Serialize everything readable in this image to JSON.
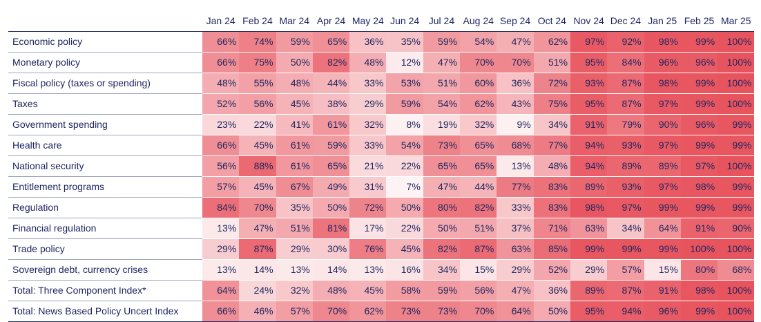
{
  "chart_data": {
    "type": "heatmap",
    "columns": [
      "Jan 24",
      "Feb 24",
      "Mar 24",
      "Apr 24",
      "May 24",
      "Jun 24",
      "Jul 24",
      "Aug 24",
      "Sep 24",
      "Oct 24",
      "Nov 24",
      "Dec 24",
      "Jan 25",
      "Feb 25",
      "Mar 25"
    ],
    "unit": "%",
    "rows": [
      {
        "label": "Economic policy",
        "values": [
          66,
          74,
          59,
          65,
          36,
          35,
          59,
          54,
          47,
          62,
          97,
          92,
          98,
          99,
          100
        ]
      },
      {
        "label": "Monetary policy",
        "values": [
          66,
          75,
          50,
          82,
          48,
          12,
          47,
          70,
          70,
          51,
          95,
          84,
          96,
          96,
          100
        ]
      },
      {
        "label": "Fiscal policy (taxes or spending)",
        "values": [
          48,
          55,
          48,
          44,
          33,
          53,
          51,
          60,
          36,
          72,
          93,
          87,
          98,
          99,
          100
        ]
      },
      {
        "label": "Taxes",
        "values": [
          52,
          56,
          45,
          38,
          29,
          59,
          54,
          62,
          43,
          75,
          95,
          87,
          97,
          99,
          100
        ]
      },
      {
        "label": "Government spending",
        "values": [
          23,
          22,
          41,
          61,
          32,
          8,
          19,
          32,
          9,
          34,
          91,
          79,
          90,
          96,
          99
        ]
      },
      {
        "label": "Health care",
        "values": [
          66,
          45,
          61,
          59,
          33,
          54,
          73,
          65,
          68,
          77,
          94,
          93,
          97,
          99,
          99
        ]
      },
      {
        "label": "National security",
        "values": [
          56,
          88,
          61,
          65,
          21,
          22,
          65,
          65,
          13,
          48,
          94,
          89,
          89,
          97,
          100
        ]
      },
      {
        "label": "Entitlement programs",
        "values": [
          57,
          45,
          67,
          49,
          31,
          7,
          47,
          44,
          77,
          83,
          89,
          93,
          97,
          98,
          99
        ]
      },
      {
        "label": "Regulation",
        "values": [
          84,
          70,
          35,
          50,
          72,
          50,
          80,
          82,
          33,
          83,
          98,
          97,
          99,
          99,
          99
        ]
      },
      {
        "label": "Financial regulation",
        "values": [
          13,
          47,
          51,
          81,
          17,
          22,
          50,
          51,
          37,
          71,
          63,
          34,
          64,
          91,
          90
        ]
      },
      {
        "label": "Trade policy",
        "values": [
          29,
          87,
          29,
          30,
          76,
          45,
          82,
          87,
          63,
          85,
          99,
          99,
          99,
          100,
          100
        ]
      },
      {
        "label": "Sovereign debt, currency crises",
        "values": [
          13,
          14,
          13,
          14,
          13,
          16,
          34,
          15,
          29,
          52,
          29,
          57,
          15,
          80,
          68
        ]
      },
      {
        "label": "Total: Three Component Index*",
        "values": [
          64,
          24,
          32,
          48,
          45,
          58,
          59,
          56,
          47,
          36,
          89,
          87,
          91,
          98,
          100
        ]
      },
      {
        "label": "Total: News Based Policy Uncert Index",
        "values": [
          66,
          46,
          57,
          70,
          62,
          73,
          73,
          70,
          64,
          50,
          95,
          94,
          96,
          99,
          100
        ]
      }
    ],
    "colors": {
      "low": "#ffffff",
      "high": "#e8545e"
    }
  }
}
